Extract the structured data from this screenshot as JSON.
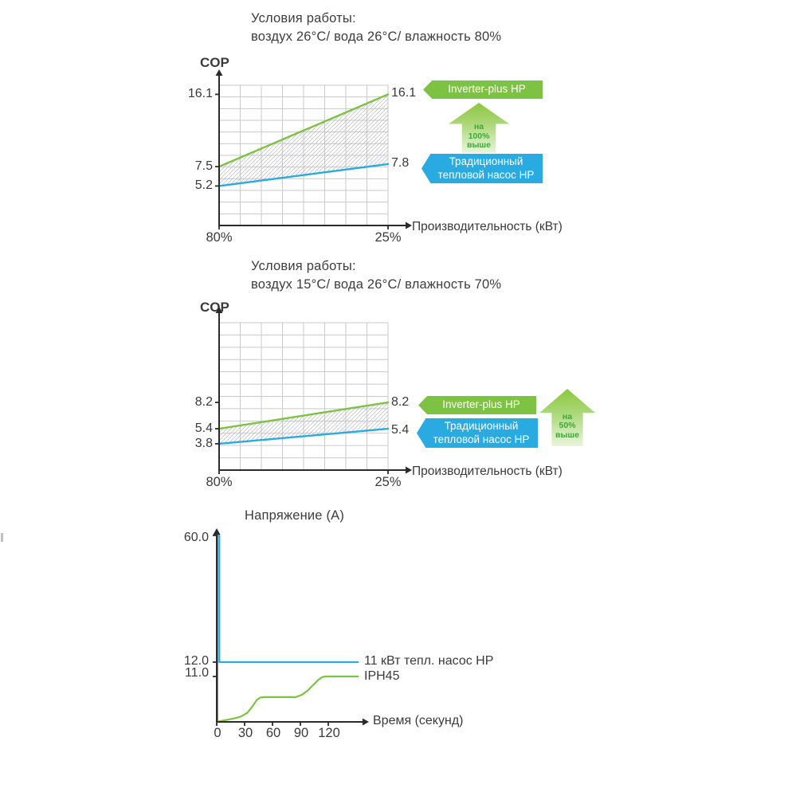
{
  "chart1": {
    "title1": "Условия работы:",
    "title2": "воздух 26°C/ вода 26°C/ влажность 80%",
    "cop": "COP",
    "xlabel": "Производительность (кВт)",
    "left_labels": [
      "16.1",
      "7.5",
      "5.2"
    ],
    "right_labels": [
      "16.1",
      "7.8"
    ],
    "xtick_left": "80%",
    "xtick_right": "25%",
    "legend_green": "Inverter-plus HP",
    "legend_blue1": "Традиционный",
    "legend_blue2": "тепловой насос HP",
    "arrow": [
      "на",
      "100%",
      "выше"
    ]
  },
  "chart2": {
    "title1": "Условия работы:",
    "title2": "воздух 15°C/ вода 26°C/ влажность 70%",
    "cop": "COP",
    "xlabel": "Производительность (кВт)",
    "left_labels": [
      "8.2",
      "5.4",
      "3.8"
    ],
    "right_labels": [
      "8.2",
      "5.4"
    ],
    "xtick_left": "80%",
    "xtick_right": "25%",
    "legend_green": "Inverter-plus HP",
    "legend_blue1": "Традиционный",
    "legend_blue2": "тепловой насос HP",
    "arrow": [
      "на",
      "50%",
      "выше"
    ]
  },
  "chart3": {
    "title": "Напряжение (A)",
    "xlabel": "Время (секунд)",
    "ylabels": [
      "60.0",
      "12.0",
      "11.0"
    ],
    "xticks": [
      "0",
      "30",
      "60",
      "90",
      "120"
    ],
    "series_blue_label": "11 кВт тепл. насос HP",
    "series_green_label": "IPH45"
  },
  "colors": {
    "green": "#7dc242",
    "blue": "#29abe2",
    "axis": "#2a2a2a",
    "grid": "#c9cacc",
    "hatch": "#b6b8ba",
    "arrow_text": "#3aaa35"
  },
  "chart_data": [
    {
      "type": "area",
      "title": "Условия работы: воздух 26°C/ вода 26°C/ влажность 80%",
      "xlabel": "Производительность (кВт)",
      "ylabel": "COP",
      "x_categories": [
        "80%",
        "25%"
      ],
      "series": [
        {
          "name": "Inverter-plus HP",
          "color": "green",
          "values": [
            7.5,
            16.1
          ]
        },
        {
          "name": "Традиционный тепловой насос HP",
          "color": "blue",
          "values": [
            5.2,
            7.8
          ]
        }
      ],
      "y_ticks_left": [
        16.1,
        7.5,
        5.2
      ],
      "y_ticks_right": [
        16.1,
        7.8
      ],
      "annotation": "на 100% выше",
      "band_between_series": "hatched",
      "grid": true,
      "legend_position": "right"
    },
    {
      "type": "area",
      "title": "Условия работы: воздух 15°C/ вода 26°C/ влажность 70%",
      "xlabel": "Производительность (кВт)",
      "ylabel": "COP",
      "x_categories": [
        "80%",
        "25%"
      ],
      "series": [
        {
          "name": "Inverter-plus HP",
          "color": "green",
          "values": [
            5.4,
            8.2
          ]
        },
        {
          "name": "Традиционный тепловой насос HP",
          "color": "blue",
          "values": [
            3.8,
            5.4
          ]
        }
      ],
      "y_ticks_left": [
        8.2,
        5.4,
        3.8
      ],
      "y_ticks_right": [
        8.2,
        5.4
      ],
      "annotation": "на 50% выше",
      "band_between_series": "hatched",
      "grid": true,
      "legend_position": "right"
    },
    {
      "type": "line",
      "title": "Напряжение (A)",
      "xlabel": "Время (секунд)",
      "x_ticks": [
        0,
        30,
        60,
        90,
        120
      ],
      "y_ticks": [
        60.0,
        12.0,
        11.0
      ],
      "grid": false,
      "series": [
        {
          "name": "11 кВт тепл. насос HP",
          "color": "blue",
          "points": [
            [
              0.8,
              0
            ],
            [
              0.8,
              60
            ],
            [
              2.8,
              60
            ],
            [
              2.8,
              12
            ],
            [
              152,
              12
            ]
          ]
        },
        {
          "name": "IPH45",
          "color": "green",
          "points": [
            [
              0,
              0
            ],
            [
              20,
              0.9
            ],
            [
              26,
              1.3
            ],
            [
              33,
              2.2
            ],
            [
              38,
              3.6
            ],
            [
              43,
              5.3
            ],
            [
              47,
              5.9
            ],
            [
              52,
              6
            ],
            [
              85,
              6
            ],
            [
              92,
              6.6
            ],
            [
              98,
              7.6
            ],
            [
              104,
              9.0
            ],
            [
              110,
              10.3
            ],
            [
              114,
              10.9
            ],
            [
              118,
              11
            ],
            [
              152,
              11
            ]
          ]
        }
      ]
    }
  ]
}
